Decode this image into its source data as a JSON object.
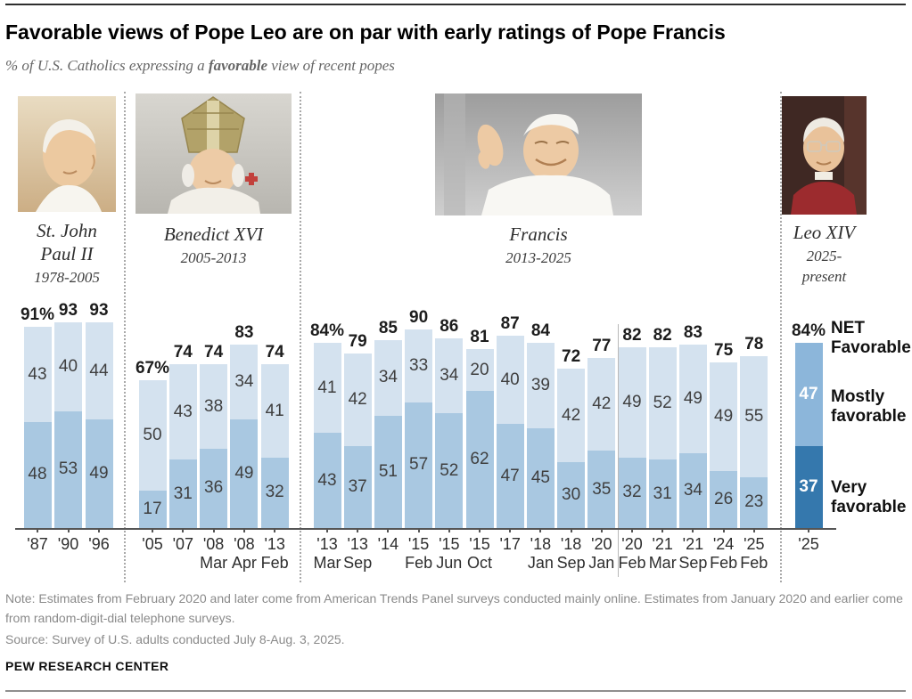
{
  "header": {
    "title": "Favorable views of Pope Leo are on par with early ratings of Pope Francis",
    "subtitle_prefix": "% of U.S. Catholics expressing a ",
    "subtitle_bold": "favorable",
    "subtitle_suffix": " view of recent popes"
  },
  "popes": [
    {
      "id": "st-john-paul-ii",
      "name_lines": [
        "St. John",
        "Paul II"
      ],
      "years_lines": [
        "1978-2005"
      ]
    },
    {
      "id": "benedict-xvi",
      "name_lines": [
        "Benedict XVI"
      ],
      "years_lines": [
        "2005-2013"
      ]
    },
    {
      "id": "francis",
      "name_lines": [
        "Francis"
      ],
      "years_lines": [
        "2013-2025"
      ]
    },
    {
      "id": "leo-xiv",
      "name_lines": [
        "Leo XIV"
      ],
      "years_lines": [
        "2025-",
        "present"
      ]
    }
  ],
  "chart_data": {
    "type": "bar",
    "stacked": true,
    "unit": "% of U.S. Catholics",
    "series_names": [
      "Very favorable",
      "Mostly favorable"
    ],
    "ylim": [
      0,
      100
    ],
    "grid": false,
    "legend_position": "right",
    "colors": {
      "mostly": "#d4e2ef",
      "very": "#a9c8e1",
      "leo_mostly": "#8cb6da",
      "leo_very": "#3578ad",
      "net_label_color": "#1d1d1d",
      "value_label_color": "#3f3f3f",
      "axis": "#555555",
      "tick_label_color": "#2e2e2e"
    },
    "groups": [
      {
        "pope": "St. John Paul II",
        "style": "light",
        "bars": [
          {
            "year": "'87",
            "month": "",
            "net": 91,
            "net_label": "91%",
            "mostly": 43,
            "very": 48
          },
          {
            "year": "'90",
            "month": "",
            "net": 93,
            "net_label": "93",
            "mostly": 40,
            "very": 53
          },
          {
            "year": "'96",
            "month": "",
            "net": 93,
            "net_label": "93",
            "mostly": 44,
            "very": 49
          }
        ]
      },
      {
        "pope": "Benedict XVI",
        "style": "light",
        "bars": [
          {
            "year": "'05",
            "month": "",
            "net": 67,
            "net_label": "67%",
            "mostly": 50,
            "very": 17
          },
          {
            "year": "'07",
            "month": "",
            "net": 74,
            "net_label": "74",
            "mostly": 43,
            "very": 31
          },
          {
            "year": "'08",
            "month": "Mar",
            "net": 74,
            "net_label": "74",
            "mostly": 38,
            "very": 36
          },
          {
            "year": "'08",
            "month": "Apr",
            "net": 83,
            "net_label": "83",
            "mostly": 34,
            "very": 49
          },
          {
            "year": "'13",
            "month": "Feb",
            "net": 74,
            "net_label": "74",
            "mostly": 41,
            "very": 32
          }
        ]
      },
      {
        "pope": "Francis",
        "style": "light",
        "bars": [
          {
            "year": "'13",
            "month": "Mar",
            "net": 84,
            "net_label": "84%",
            "mostly": 41,
            "very": 43
          },
          {
            "year": "'13",
            "month": "Sep",
            "net": 79,
            "net_label": "79",
            "mostly": 42,
            "very": 37
          },
          {
            "year": "'14",
            "month": "",
            "net": 85,
            "net_label": "85",
            "mostly": 34,
            "very": 51
          },
          {
            "year": "'15",
            "month": "Feb",
            "net": 90,
            "net_label": "90",
            "mostly": 33,
            "very": 57
          },
          {
            "year": "'15",
            "month": "Jun",
            "net": 86,
            "net_label": "86",
            "mostly": 34,
            "very": 52
          },
          {
            "year": "'15",
            "month": "Oct",
            "net": 81,
            "net_label": "81",
            "mostly": 20,
            "very": 62
          },
          {
            "year": "'17",
            "month": "",
            "net": 87,
            "net_label": "87",
            "mostly": 40,
            "very": 47
          },
          {
            "year": "'18",
            "month": "Jan",
            "net": 84,
            "net_label": "84",
            "mostly": 39,
            "very": 45
          },
          {
            "year": "'18",
            "month": "Sep",
            "net": 72,
            "net_label": "72",
            "mostly": 42,
            "very": 30
          },
          {
            "year": "'20",
            "month": "Jan",
            "net": 77,
            "net_label": "77",
            "mostly": 42,
            "very": 35
          },
          {
            "year": "'20",
            "month": "Feb",
            "net": 82,
            "net_label": "82",
            "mostly": 49,
            "very": 32
          },
          {
            "year": "'21",
            "month": "Mar",
            "net": 82,
            "net_label": "82",
            "mostly": 52,
            "very": 31
          },
          {
            "year": "'21",
            "month": "Sep",
            "net": 83,
            "net_label": "83",
            "mostly": 49,
            "very": 34
          },
          {
            "year": "'24",
            "month": "Feb",
            "net": 75,
            "net_label": "75",
            "mostly": 49,
            "very": 26
          },
          {
            "year": "'25",
            "month": "Feb",
            "net": 78,
            "net_label": "78",
            "mostly": 55,
            "very": 23
          }
        ]
      },
      {
        "pope": "Leo XIV",
        "style": "dark",
        "bars": [
          {
            "year": "'25",
            "month": "",
            "net": 84,
            "net_label": "84%",
            "mostly": 47,
            "very": 37
          }
        ]
      }
    ],
    "legend": {
      "net_lines": [
        "NET",
        "Favorable"
      ],
      "mostly_lines": [
        "Mostly",
        "favorable"
      ],
      "very_lines": [
        "Very",
        "favorable"
      ]
    }
  },
  "footer": {
    "note": "Note: Estimates from February 2020 and later come from American Trends Panel surveys conducted mainly online. Estimates from January 2020 and earlier come from random-digit-dial telephone surveys.",
    "source": "Source: Survey of U.S. adults conducted July 8-Aug. 3, 2025.",
    "brand": "PEW RESEARCH CENTER"
  }
}
